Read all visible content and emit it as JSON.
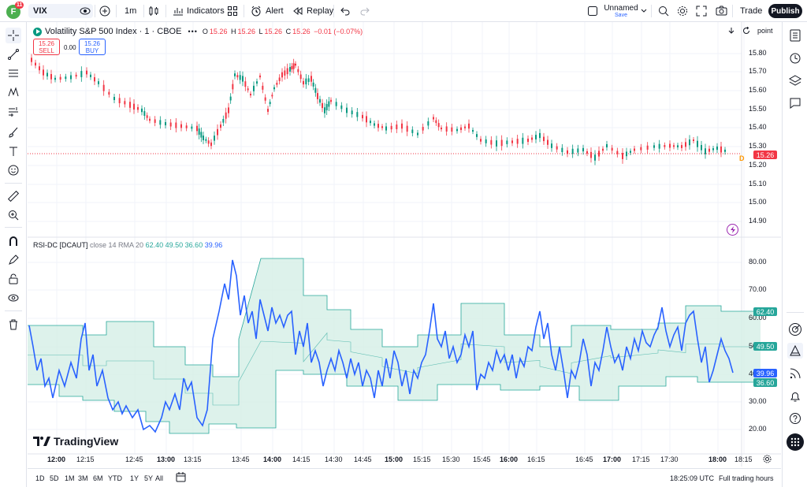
{
  "topbar": {
    "avatar_letter": "F",
    "avatar_badge": "11",
    "symbol": "VIX",
    "interval": "1m",
    "indicators": "Indicators",
    "alert": "Alert",
    "replay": "Replay",
    "layout_name": "Unnamed",
    "layout_status": "Save",
    "trade": "Trade",
    "publish": "Publish"
  },
  "legend": {
    "title": "Volatility S&P 500 Index · 1 · CBOE",
    "open_label": "O",
    "open": "15.26",
    "high_label": "H",
    "high": "15.26",
    "low_label": "L",
    "low": "15.26",
    "close_label": "C",
    "close": "15.26",
    "change": "−0.01 (−0.07%)",
    "sell_price": "15.26",
    "sell_label": "SELL",
    "spread": "0.00",
    "buy_price": "15.26",
    "buy_label": "BUY"
  },
  "price_axis": {
    "scale_mode": "point",
    "ticks": [
      "15.80",
      "15.70",
      "15.60",
      "15.50",
      "15.40",
      "15.30",
      "15.20",
      "15.10",
      "15.00",
      "14.90"
    ],
    "last_price": "15.26",
    "marker_d": "D"
  },
  "rsi": {
    "legend_name": "RSI-DC [DCAUT]",
    "legend_params": "close 14 RMA 20",
    "val_upper": "62.40",
    "val_mid": "49.50",
    "val_lower": "36.60",
    "val_rsi": "39.96",
    "ticks": [
      "80.00",
      "70.00",
      "60.00",
      "50.00",
      "40.00",
      "30.00",
      "20.00"
    ]
  },
  "time_axis": {
    "labels": [
      "12:00",
      "12:15",
      "12:45",
      "13:00",
      "13:15",
      "13:45",
      "14:00",
      "14:15",
      "14:30",
      "14:45",
      "15:00",
      "15:15",
      "15:30",
      "15:45",
      "16:00",
      "16:15",
      "16:45",
      "17:00",
      "17:15",
      "17:30",
      "18:00",
      "18:15"
    ]
  },
  "bottombar": {
    "ranges": [
      "1D",
      "5D",
      "1M",
      "3M",
      "6M",
      "YTD",
      "1Y",
      "5Y",
      "All"
    ],
    "clock": "18:25:09 UTC",
    "session": "Full trading hours"
  },
  "brand": "TradingView",
  "colors": {
    "up": "#089981",
    "down": "#f23645",
    "rsi_line": "#2962ff",
    "channel_fill": "#d5efe6",
    "channel_line": "#26a69a",
    "accent_text": "#2962ff"
  }
}
